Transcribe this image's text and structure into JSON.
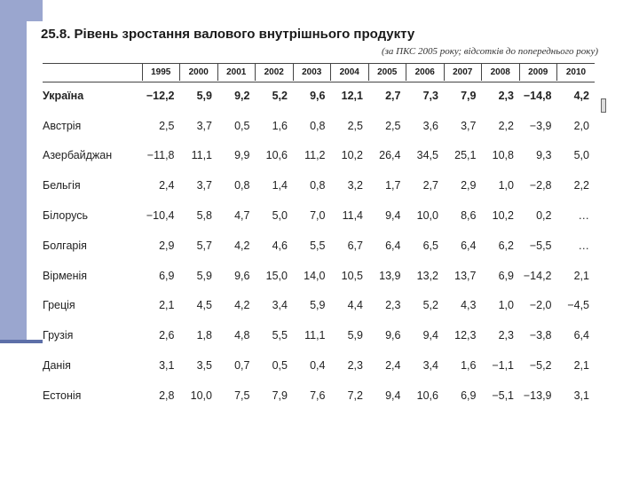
{
  "title": "25.8. Рівень зростання валового внутрішнього продукту",
  "subtitle": "(за ПКС 2005 року; відсотків до попереднього року)",
  "years": [
    "1995",
    "2000",
    "2001",
    "2002",
    "2003",
    "2004",
    "2005",
    "2006",
    "2007",
    "2008",
    "2009",
    "2010"
  ],
  "rows": [
    {
      "country": "Україна",
      "values": [
        "−12,2",
        "5,9",
        "9,2",
        "5,2",
        "9,6",
        "12,1",
        "2,7",
        "7,3",
        "7,9",
        "2,3",
        "−14,8",
        "4,2"
      ]
    },
    {
      "country": "Австрія",
      "values": [
        "2,5",
        "3,7",
        "0,5",
        "1,6",
        "0,8",
        "2,5",
        "2,5",
        "3,6",
        "3,7",
        "2,2",
        "−3,9",
        "2,0"
      ]
    },
    {
      "country": "Азербайджан",
      "values": [
        "−11,8",
        "11,1",
        "9,9",
        "10,6",
        "11,2",
        "10,2",
        "26,4",
        "34,5",
        "25,1",
        "10,8",
        "9,3",
        "5,0"
      ]
    },
    {
      "country": "Бельгія",
      "values": [
        "2,4",
        "3,7",
        "0,8",
        "1,4",
        "0,8",
        "3,2",
        "1,7",
        "2,7",
        "2,9",
        "1,0",
        "−2,8",
        "2,2"
      ]
    },
    {
      "country": "Білорусь",
      "values": [
        "−10,4",
        "5,8",
        "4,7",
        "5,0",
        "7,0",
        "11,4",
        "9,4",
        "10,0",
        "8,6",
        "10,2",
        "0,2",
        "…"
      ]
    },
    {
      "country": "Болгарія",
      "values": [
        "2,9",
        "5,7",
        "4,2",
        "4,6",
        "5,5",
        "6,7",
        "6,4",
        "6,5",
        "6,4",
        "6,2",
        "−5,5",
        "…"
      ]
    },
    {
      "country": "Вірменія",
      "values": [
        "6,9",
        "5,9",
        "9,6",
        "15,0",
        "14,0",
        "10,5",
        "13,9",
        "13,2",
        "13,7",
        "6,9",
        "−14,2",
        "2,1"
      ]
    },
    {
      "country": "Греція",
      "values": [
        "2,1",
        "4,5",
        "4,2",
        "3,4",
        "5,9",
        "4,4",
        "2,3",
        "5,2",
        "4,3",
        "1,0",
        "−2,0",
        "−4,5"
      ]
    },
    {
      "country": "Грузія",
      "values": [
        "2,6",
        "1,8",
        "4,8",
        "5,5",
        "11,1",
        "5,9",
        "9,6",
        "9,4",
        "12,3",
        "2,3",
        "−3,8",
        "6,4"
      ]
    },
    {
      "country": "Данія",
      "values": [
        "3,1",
        "3,5",
        "0,7",
        "0,5",
        "0,4",
        "2,3",
        "2,4",
        "3,4",
        "1,6",
        "−1,1",
        "−5,2",
        "2,1"
      ]
    },
    {
      "country": "Естонія",
      "values": [
        "2,8",
        "10,0",
        "7,5",
        "7,9",
        "7,6",
        "7,2",
        "9,4",
        "10,6",
        "6,9",
        "−5,1",
        "−13,9",
        "3,1"
      ]
    }
  ]
}
